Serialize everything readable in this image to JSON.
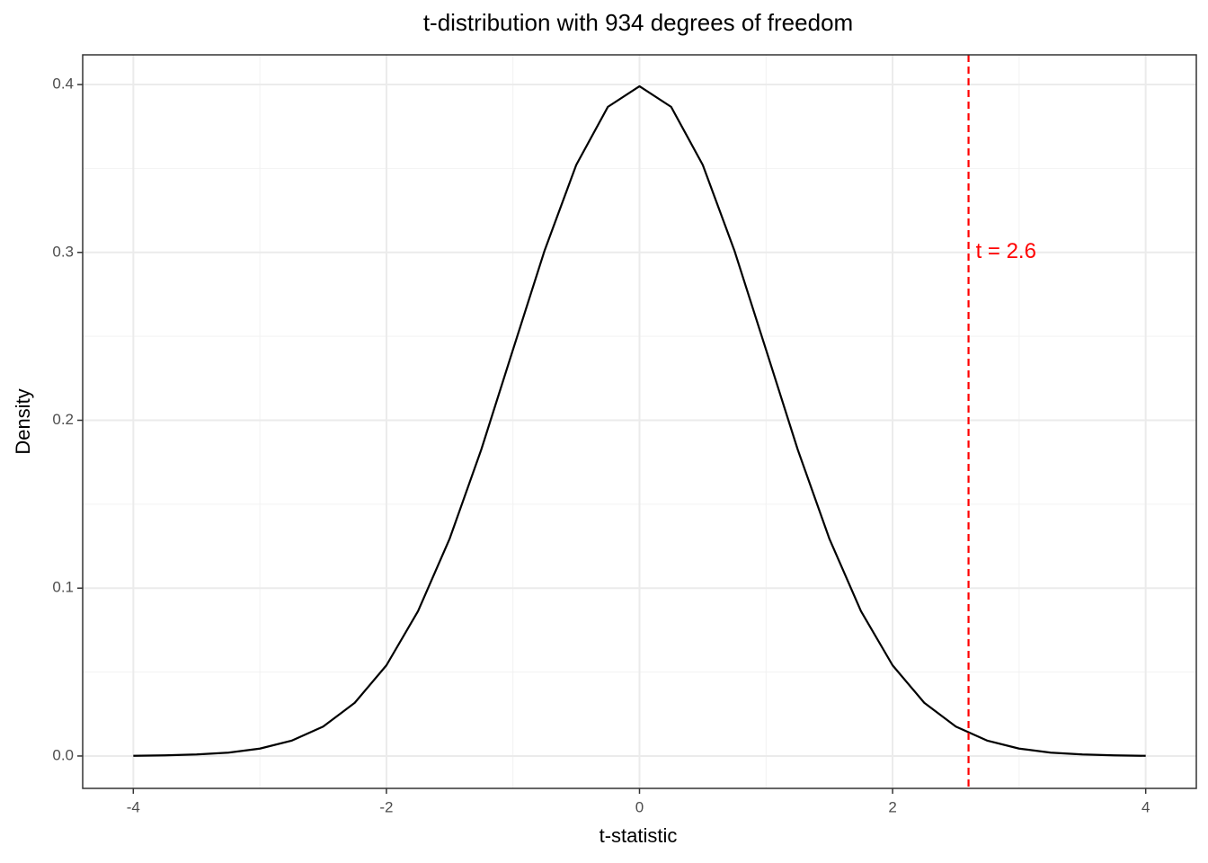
{
  "chart_data": {
    "type": "line",
    "title": "t-distribution with 934 degrees of freedom",
    "xlabel": "t-statistic",
    "ylabel": "Density",
    "x": [
      -4,
      -3.75,
      -3.5,
      -3.25,
      -3,
      -2.75,
      -2.5,
      -2.25,
      -2,
      -1.75,
      -1.5,
      -1.25,
      -1,
      -0.75,
      -0.5,
      -0.25,
      0,
      0.25,
      0.5,
      0.75,
      1,
      1.25,
      1.5,
      1.75,
      2,
      2.25,
      2.5,
      2.75,
      3,
      3.25,
      3.5,
      3.75,
      4
    ],
    "series": [
      {
        "color": "#000000",
        "values": [
          0.0001,
          0.0004,
          0.0009,
          0.002,
          0.0044,
          0.0091,
          0.0175,
          0.0317,
          0.054,
          0.0863,
          0.1295,
          0.1826,
          0.242,
          0.3011,
          0.3521,
          0.3867,
          0.399,
          0.3867,
          0.3521,
          0.3011,
          0.242,
          0.1826,
          0.1295,
          0.0863,
          0.054,
          0.0317,
          0.0175,
          0.0091,
          0.0044,
          0.002,
          0.0009,
          0.0004,
          0.0001
        ]
      }
    ],
    "xlim": [
      -4.4,
      4.4
    ],
    "xticks": [
      -4,
      -2,
      0,
      2,
      4
    ],
    "ylim": [
      -0.0193,
      0.4177
    ],
    "yticks": [
      {
        "value": 0,
        "label": "0.0"
      },
      0.1,
      0.2,
      0.3,
      0.4
    ],
    "grid": true,
    "vline": {
      "x": 2.6,
      "color": "#ff0000"
    },
    "annotation": {
      "text": "t = 2.6",
      "x": 2.6,
      "y": 0.3,
      "color": "#ff0000"
    }
  }
}
